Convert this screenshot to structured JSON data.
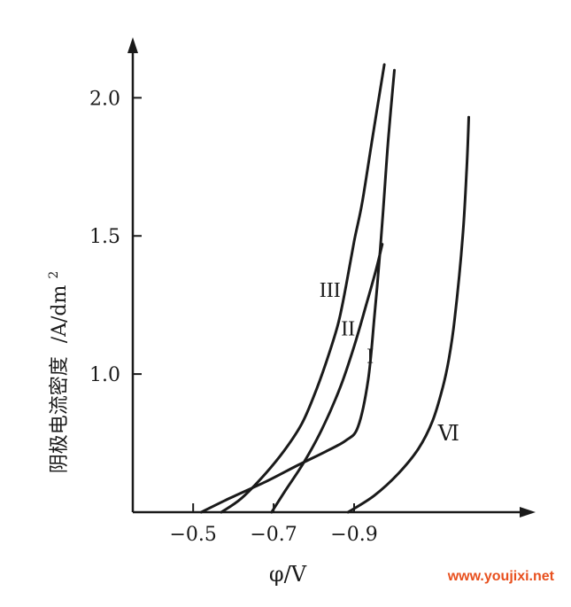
{
  "chart_data": {
    "type": "line",
    "xlabel": "φ/V",
    "ylabel": "阴极电流密度 /A/dm²",
    "ylabel_main": "阴极电流密度",
    "ylabel_unit": "/A/dm",
    "ylabel_sup": "2",
    "xlim": [
      -0.35,
      -1.34
    ],
    "ylim": [
      0.5,
      2.2
    ],
    "x_ticks": [
      {
        "value": -0.5,
        "label": "−0.5"
      },
      {
        "value": -0.7,
        "label": "−0.7"
      },
      {
        "value": -0.9,
        "label": "−0.9"
      }
    ],
    "y_ticks": [
      {
        "value": 1.0,
        "label": "1.0"
      },
      {
        "value": 1.5,
        "label": "1.5"
      },
      {
        "value": 2.0,
        "label": "2.0"
      }
    ],
    "series": [
      {
        "name": "I",
        "label_at": [
          -0.94,
          1.04
        ],
        "x": [
          -0.52,
          -0.59,
          -0.68,
          -0.76,
          -0.83,
          -0.88,
          -0.91,
          -0.935,
          -0.95,
          -0.965,
          -0.975,
          -0.985,
          -1.0
        ],
        "y": [
          0.5,
          0.55,
          0.61,
          0.67,
          0.72,
          0.76,
          0.81,
          0.98,
          1.2,
          1.45,
          1.65,
          1.85,
          2.1
        ]
      },
      {
        "name": "II",
        "label_at": [
          -0.885,
          1.14
        ],
        "x": [
          -0.695,
          -0.73,
          -0.775,
          -0.82,
          -0.865,
          -0.9,
          -0.93,
          -0.955,
          -0.97
        ],
        "y": [
          0.5,
          0.58,
          0.68,
          0.8,
          0.95,
          1.1,
          1.25,
          1.38,
          1.47
        ]
      },
      {
        "name": "III",
        "label_at": [
          -0.84,
          1.28
        ],
        "x": [
          -0.57,
          -0.62,
          -0.68,
          -0.73,
          -0.77,
          -0.8,
          -0.83,
          -0.86,
          -0.88,
          -0.9,
          -0.92,
          -0.945,
          -0.975
        ],
        "y": [
          0.5,
          0.55,
          0.64,
          0.73,
          0.82,
          0.92,
          1.04,
          1.18,
          1.32,
          1.48,
          1.62,
          1.85,
          2.12
        ]
      },
      {
        "name": "Ⅵ",
        "label_at": [
          -1.135,
          0.76
        ],
        "x": [
          -0.885,
          -0.95,
          -1.01,
          -1.06,
          -1.095,
          -1.12,
          -1.135,
          -1.15,
          -1.17,
          -1.18,
          -1.185
        ],
        "y": [
          0.5,
          0.56,
          0.64,
          0.73,
          0.83,
          0.95,
          1.05,
          1.2,
          1.5,
          1.75,
          1.93
        ]
      }
    ],
    "grid": false,
    "legend": "none"
  },
  "watermark": "www.youjixi.net"
}
